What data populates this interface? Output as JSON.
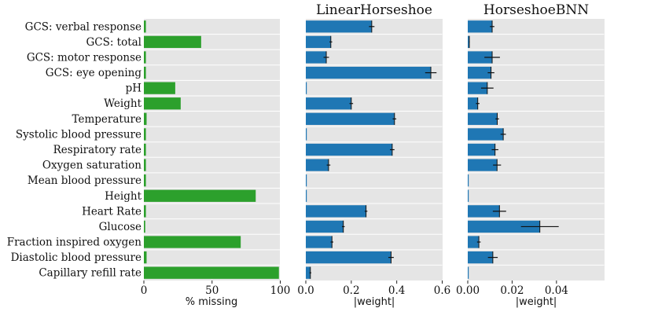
{
  "chart_data": [
    {
      "type": "bar",
      "orientation": "horizontal",
      "title": "",
      "xlabel": "% missing",
      "xlim": [
        0,
        100
      ],
      "xticks": [
        "0",
        "50",
        "100"
      ],
      "bar_color": "#2ca02c",
      "background": "#e5e5e5",
      "categories": [
        "GCS: verbal response",
        "GCS: total",
        "GCS: motor response",
        "GCS: eye opening",
        "pH",
        "Weight",
        "Temperature",
        "Systolic blood pressure",
        "Respiratory rate",
        "Oxygen saturation",
        "Mean blood pressure",
        "Height",
        "Heart Rate",
        "Glucose",
        "Fraction inspired oxygen",
        "Diastolic blood pressure",
        "Capillary refill rate"
      ],
      "values": [
        1.5,
        42,
        1.5,
        1.5,
        23,
        27,
        2,
        1.5,
        1.5,
        1.5,
        1.5,
        82,
        1.5,
        1,
        71,
        2,
        99
      ]
    },
    {
      "type": "bar",
      "orientation": "horizontal",
      "title": "LinearHorseshoe",
      "xlabel": "|weight|",
      "xlim": [
        0,
        0.6
      ],
      "xticks": [
        "0.0",
        "0.2",
        "0.4",
        "0.6"
      ],
      "bar_color": "#1f77b4",
      "background": "#e5e5e5",
      "values": [
        0.29,
        0.11,
        0.09,
        0.55,
        0.003,
        0.2,
        0.39,
        0.003,
        0.38,
        0.1,
        0.003,
        0.003,
        0.265,
        0.165,
        0.115,
        0.375,
        0.02
      ],
      "errors": [
        0.012,
        0.006,
        0.012,
        0.025,
        0.0,
        0.008,
        0.008,
        0.0,
        0.01,
        0.008,
        0.0,
        0.0,
        0.006,
        0.006,
        0.006,
        0.012,
        0.004
      ]
    },
    {
      "type": "bar",
      "orientation": "horizontal",
      "title": "HorseshoeBNN",
      "xlabel": "|weight|",
      "xlim": [
        0,
        0.0615
      ],
      "xticks": [
        "0.00",
        "0.02",
        "0.04"
      ],
      "bar_color": "#1f77b4",
      "background": "#e5e5e5",
      "values": [
        0.011,
        0.0007,
        0.011,
        0.0105,
        0.0088,
        0.0045,
        0.0133,
        0.016,
        0.0123,
        0.0132,
        0.0003,
        0.0003,
        0.0143,
        0.0325,
        0.005,
        0.0113,
        0.0003
      ],
      "errors": [
        0.001,
        0.0002,
        0.0035,
        0.0015,
        0.0028,
        0.0008,
        0.0008,
        0.0012,
        0.0015,
        0.0018,
        0.0,
        0.0,
        0.003,
        0.0085,
        0.0008,
        0.0022,
        0.0
      ]
    }
  ]
}
